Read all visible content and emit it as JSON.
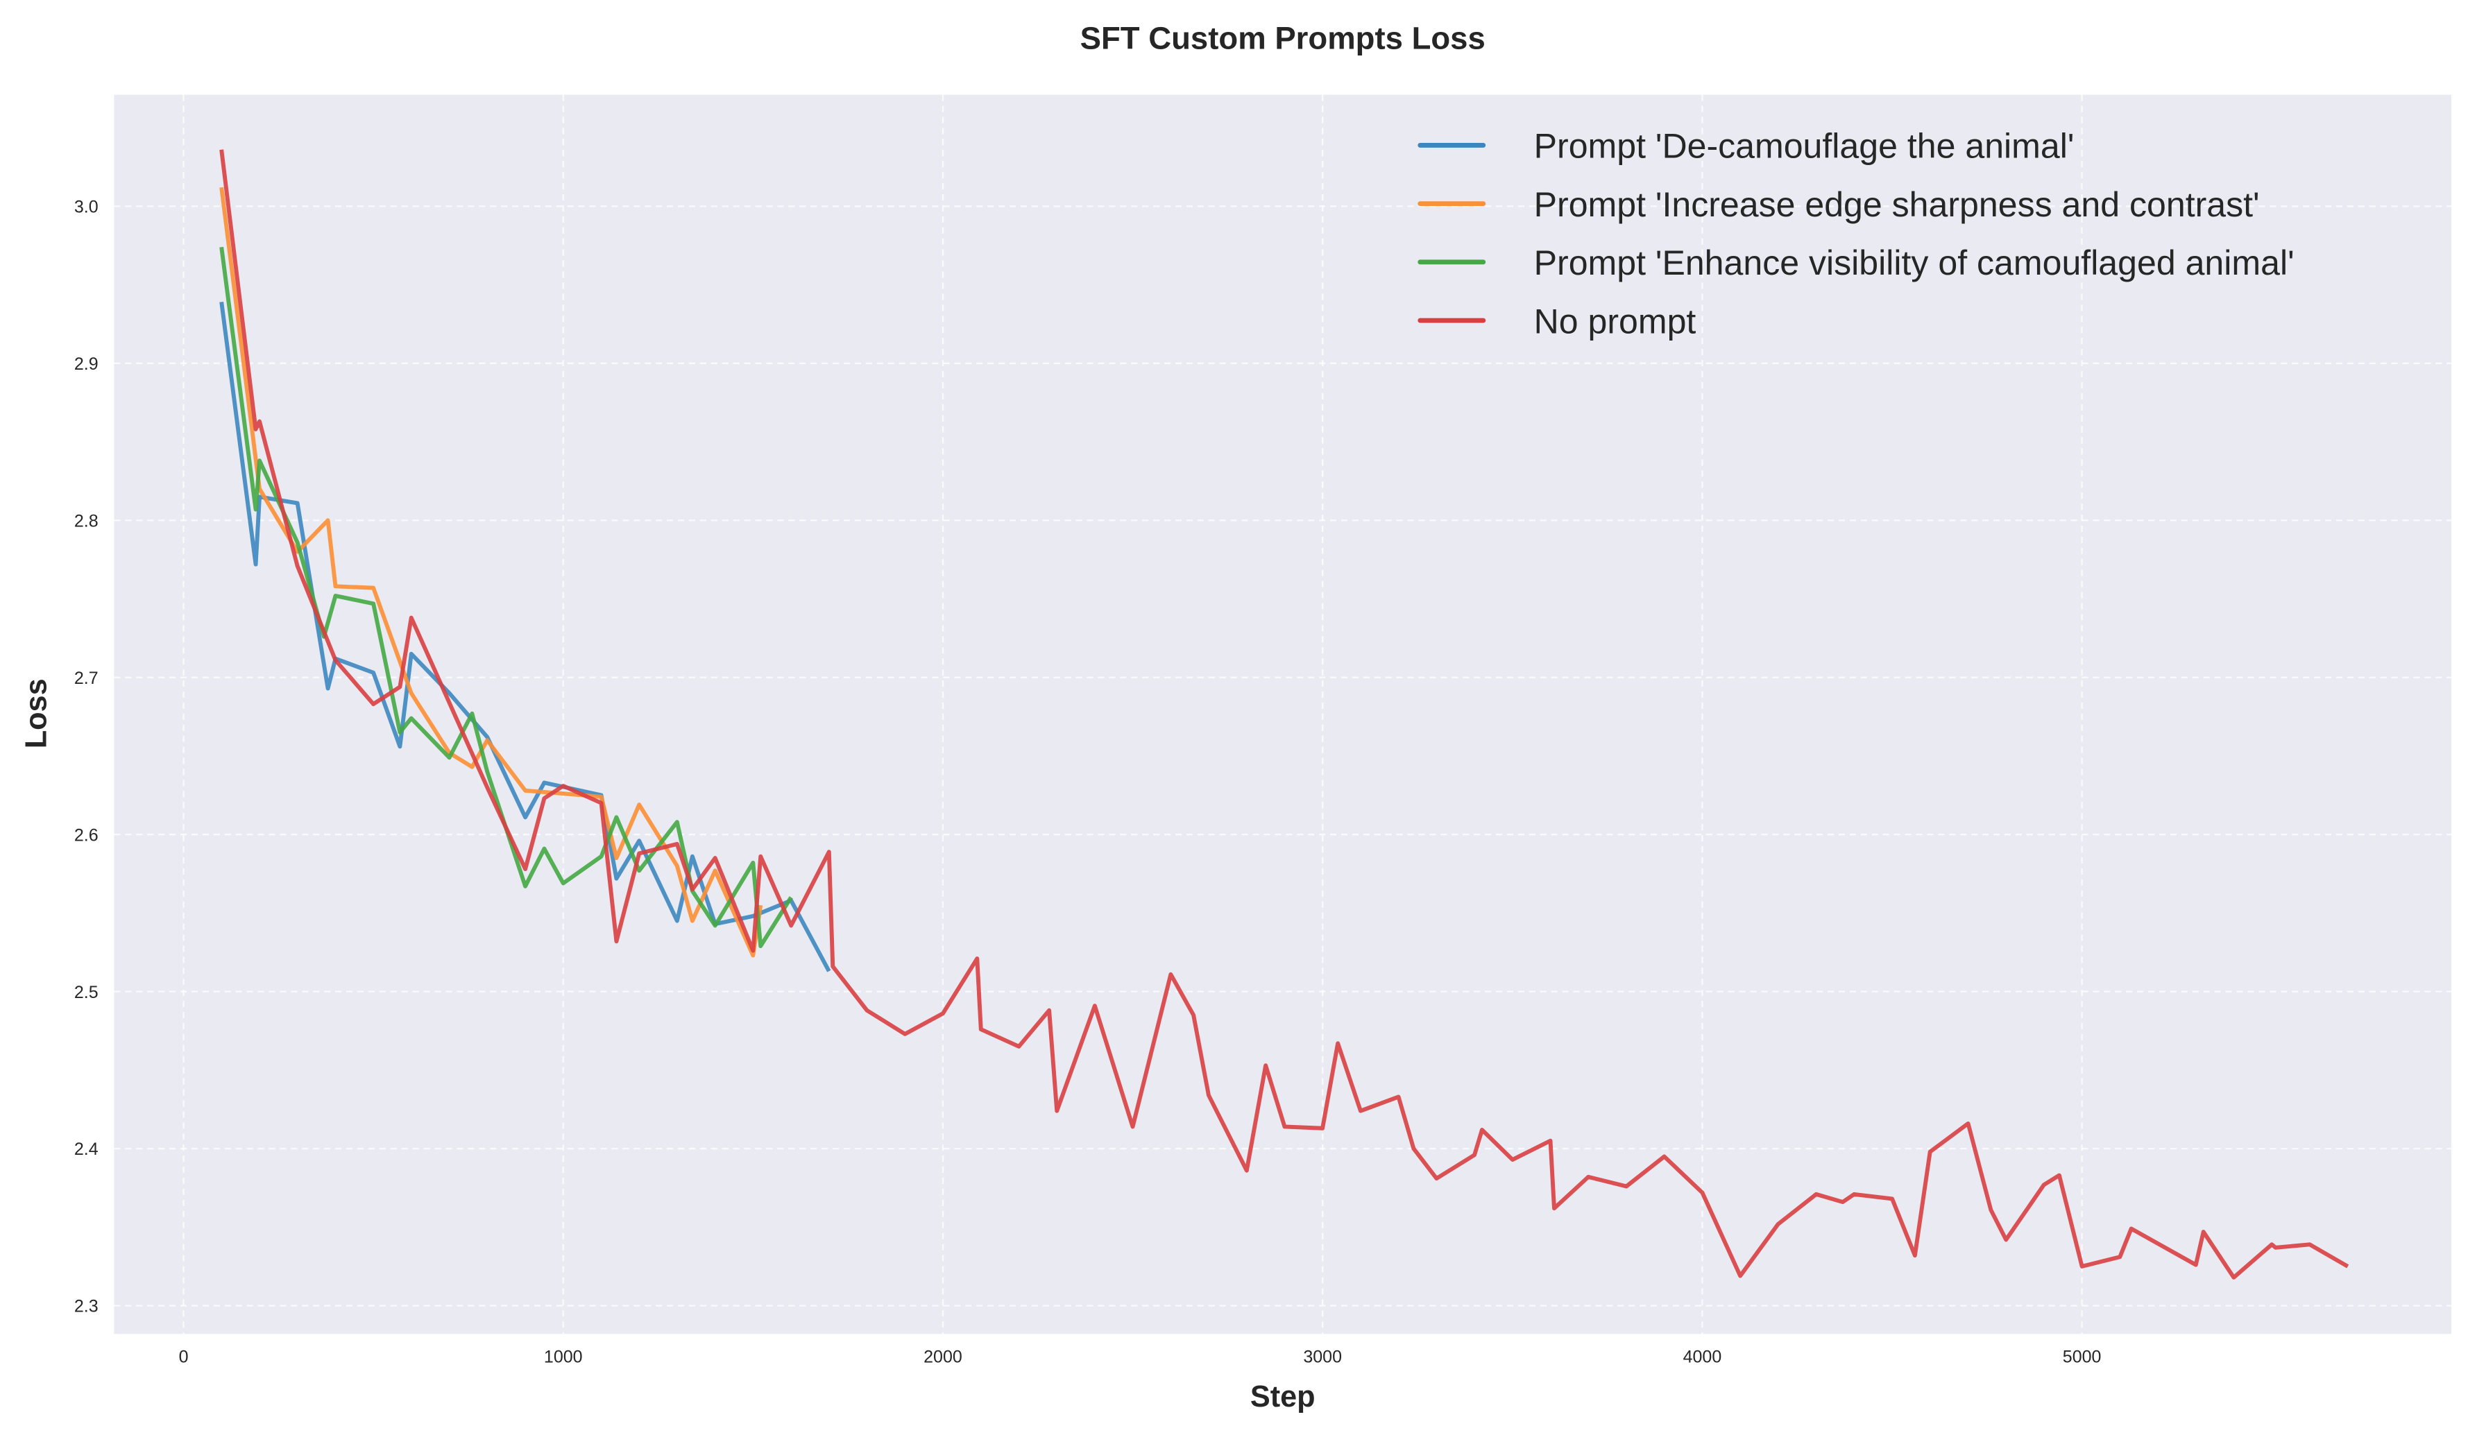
{
  "chart_data": {
    "type": "line",
    "title": "SFT Custom Prompts Loss",
    "xlabel": "Step",
    "ylabel": "Loss",
    "xlim": [
      -183,
      5973
    ],
    "ylim": [
      2.282,
      3.071
    ],
    "xticks": [
      0,
      1000,
      2000,
      3000,
      4000,
      5000
    ],
    "yticks": [
      2.3,
      2.4,
      2.5,
      2.6,
      2.7,
      2.8,
      2.9,
      3.0
    ],
    "xtick_labels": [
      "0",
      "1000",
      "2000",
      "3000",
      "4000",
      "5000"
    ],
    "ytick_labels": [
      "2.3",
      "2.4",
      "2.5",
      "2.6",
      "2.7",
      "2.8",
      "2.9",
      "3.0"
    ],
    "grid": true,
    "legend_position": "top-right",
    "series": [
      {
        "name": "Prompt 'De-camouflage the animal'",
        "color": "#3c87c0",
        "x": [
          100,
          190,
          200,
          300,
          380,
          400,
          500,
          570,
          600,
          700,
          800,
          900,
          950,
          1100,
          1140,
          1200,
          1300,
          1340,
          1400,
          1500,
          1600,
          1700
        ],
        "y": [
          2.939,
          2.772,
          2.815,
          2.811,
          2.693,
          2.712,
          2.703,
          2.656,
          2.715,
          2.69,
          2.662,
          2.611,
          2.633,
          2.625,
          2.572,
          2.596,
          2.545,
          2.586,
          2.543,
          2.548,
          2.558,
          2.513
        ]
      },
      {
        "name": "Prompt 'Increase edge sharpness and contrast'",
        "color": "#fd8f34",
        "x": [
          100,
          200,
          300,
          380,
          400,
          500,
          600,
          700,
          760,
          800,
          900,
          1000,
          1100,
          1140,
          1200,
          1300,
          1340,
          1400,
          1500,
          1520
        ],
        "y": [
          3.012,
          2.82,
          2.78,
          2.8,
          2.758,
          2.757,
          2.69,
          2.652,
          2.643,
          2.66,
          2.628,
          2.626,
          2.624,
          2.585,
          2.619,
          2.58,
          2.545,
          2.577,
          2.523,
          2.555
        ]
      },
      {
        "name": "Prompt 'Enhance visibility of camouflaged animal'",
        "color": "#44a844",
        "x": [
          100,
          190,
          200,
          300,
          370,
          400,
          500,
          570,
          600,
          700,
          760,
          800,
          900,
          950,
          1000,
          1100,
          1140,
          1200,
          1300,
          1340,
          1400,
          1500,
          1520,
          1600
        ],
        "y": [
          2.974,
          2.807,
          2.838,
          2.786,
          2.726,
          2.752,
          2.747,
          2.665,
          2.674,
          2.649,
          2.677,
          2.64,
          2.567,
          2.591,
          2.569,
          2.586,
          2.611,
          2.577,
          2.608,
          2.564,
          2.542,
          2.582,
          2.529,
          2.56
        ]
      },
      {
        "name": "No prompt",
        "color": "#d93f40",
        "x": [
          100,
          190,
          200,
          300,
          400,
          500,
          570,
          600,
          800,
          900,
          950,
          1000,
          1100,
          1140,
          1200,
          1300,
          1340,
          1400,
          1500,
          1520,
          1600,
          1700,
          1710,
          1800,
          1900,
          2000,
          2090,
          2100,
          2200,
          2280,
          2300,
          2400,
          2500,
          2600,
          2660,
          2700,
          2800,
          2850,
          2900,
          3000,
          3040,
          3100,
          3200,
          3240,
          3300,
          3400,
          3420,
          3500,
          3600,
          3610,
          3700,
          3800,
          3900,
          4000,
          4100,
          4200,
          4300,
          4370,
          4400,
          4500,
          4560,
          4600,
          4700,
          4760,
          4800,
          4900,
          4940,
          5000,
          5100,
          5130,
          5300,
          5320,
          5400,
          5500,
          5510,
          5600,
          5700
        ],
        "y": [
          3.036,
          2.858,
          2.863,
          2.771,
          2.711,
          2.683,
          2.694,
          2.738,
          2.63,
          2.578,
          2.623,
          2.631,
          2.62,
          2.532,
          2.588,
          2.594,
          2.565,
          2.585,
          2.526,
          2.586,
          2.542,
          2.589,
          2.516,
          2.488,
          2.473,
          2.486,
          2.521,
          2.476,
          2.465,
          2.488,
          2.424,
          2.491,
          2.414,
          2.511,
          2.485,
          2.434,
          2.386,
          2.453,
          2.414,
          2.413,
          2.467,
          2.424,
          2.433,
          2.4,
          2.381,
          2.396,
          2.412,
          2.393,
          2.405,
          2.362,
          2.382,
          2.376,
          2.395,
          2.372,
          2.319,
          2.352,
          2.371,
          2.366,
          2.371,
          2.368,
          2.332,
          2.398,
          2.416,
          2.361,
          2.342,
          2.377,
          2.383,
          2.325,
          2.331,
          2.349,
          2.326,
          2.347,
          2.318,
          2.339,
          2.337,
          2.339,
          2.325
        ]
      }
    ]
  }
}
